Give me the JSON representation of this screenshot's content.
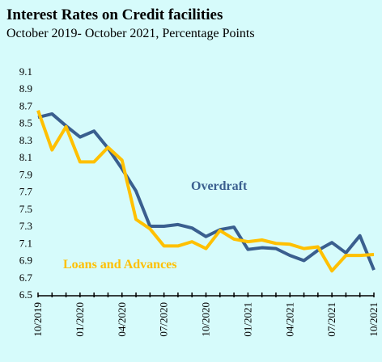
{
  "chart_data": {
    "type": "line",
    "title": "Interest Rates on Credit facilities",
    "subtitle": "October 2019- October 2021, Percentage Points",
    "categories": [
      "10/2019",
      null,
      null,
      "01/2020",
      null,
      null,
      "04/2020",
      null,
      null,
      "07/2020",
      null,
      null,
      "10/2020",
      null,
      null,
      "01/2021",
      null,
      null,
      "04/2021",
      null,
      null,
      "07/2021",
      null,
      null,
      "10/2021"
    ],
    "series": [
      {
        "name": "Overdraft",
        "color": "#3a5f8f",
        "values": [
          8.58,
          8.62,
          8.48,
          8.35,
          8.42,
          8.22,
          7.98,
          7.72,
          7.31,
          7.31,
          7.33,
          7.29,
          7.19,
          7.27,
          7.3,
          7.04,
          7.06,
          7.05,
          6.97,
          6.91,
          7.03,
          7.12,
          7.0,
          7.2,
          6.8
        ]
      },
      {
        "name": "Loans and Advances",
        "color": "#ffc000",
        "values": [
          8.66,
          8.2,
          8.47,
          8.06,
          8.06,
          8.23,
          8.08,
          7.39,
          7.28,
          7.08,
          7.08,
          7.13,
          7.05,
          7.26,
          7.16,
          7.13,
          7.15,
          7.11,
          7.1,
          7.05,
          7.07,
          6.79,
          6.97,
          6.97,
          6.98
        ]
      }
    ],
    "ylim": [
      6.5,
      9.1
    ],
    "yticks": [
      6.5,
      6.7,
      6.9,
      7.1,
      7.3,
      7.5,
      7.7,
      7.9,
      8.1,
      8.3,
      8.5,
      8.7,
      8.9,
      9.1
    ],
    "grid": false
  }
}
